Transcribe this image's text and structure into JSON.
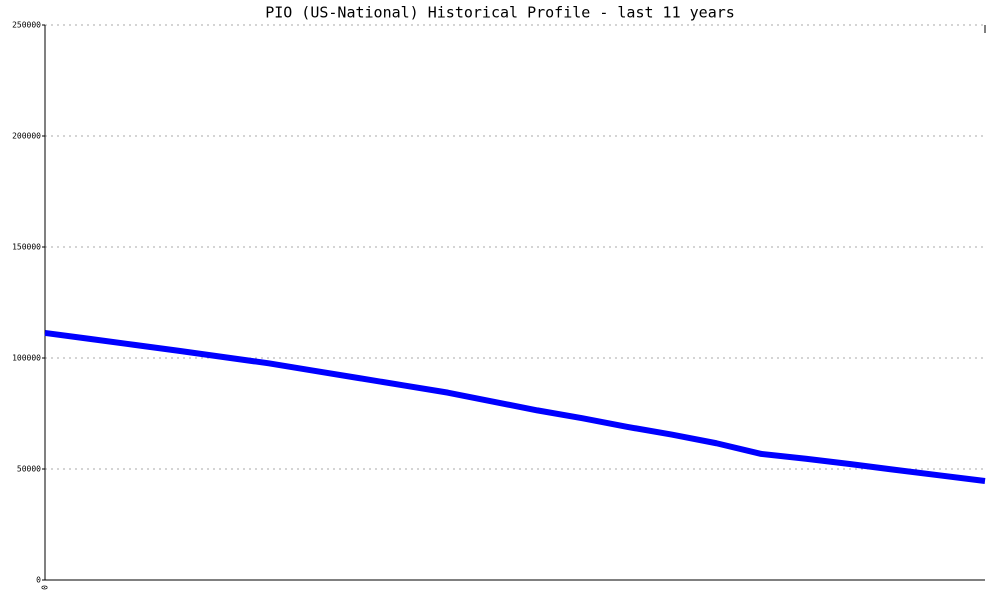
{
  "chart_data": {
    "type": "line",
    "title": "PIO (US-National) Historical Profile - last 11 years",
    "categories": [
      "0",
      null,
      null,
      null,
      null,
      null,
      null,
      null,
      null,
      null,
      null,
      null,
      null,
      null,
      null,
      null,
      null,
      null,
      null,
      null,
      null,
      null
    ],
    "series": [
      {
        "color": "#0000ff",
        "values": [
          111300,
          108600,
          105900,
          103200,
          100400,
          97600,
          94300,
          91000,
          87700,
          84400,
          80400,
          76400,
          72900,
          69000,
          65500,
          61600,
          56800,
          54600,
          52200,
          49600,
          47100,
          44600
        ]
      }
    ],
    "ylim": [
      0,
      250000
    ],
    "yticks": [
      0,
      50000,
      100000,
      150000,
      200000,
      250000
    ],
    "grid": true
  }
}
